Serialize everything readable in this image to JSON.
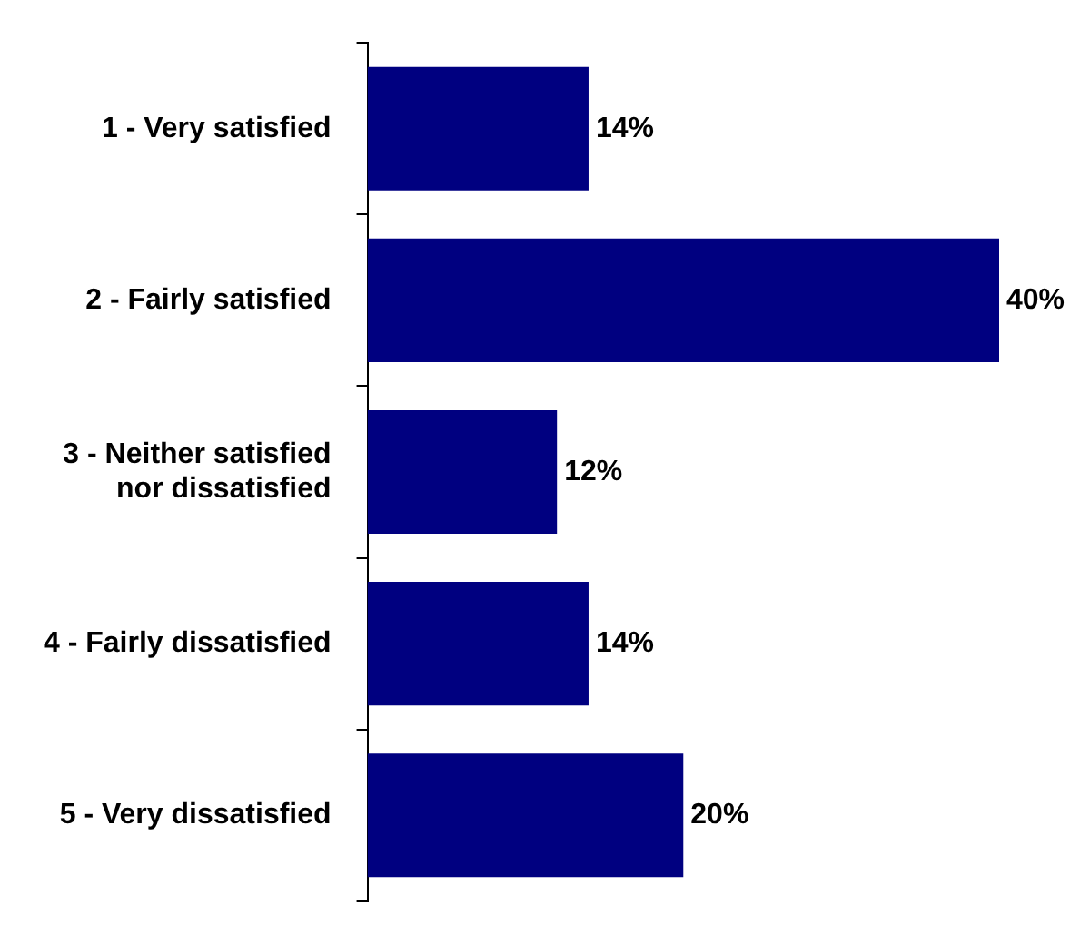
{
  "chart_data": {
    "type": "bar",
    "orientation": "horizontal",
    "categories": [
      "1 - Very satisfied",
      "2 - Fairly satisfied",
      "3 - Neither satisfied nor dissatisfied",
      "4 - Fairly dissatisfied",
      "5 - Very dissatisfied"
    ],
    "values": [
      14,
      40,
      12,
      14,
      20
    ],
    "value_labels": [
      "14%",
      "40%",
      "12%",
      "14%",
      "20%"
    ],
    "color": "#000080",
    "grid": false,
    "legend": false
  }
}
